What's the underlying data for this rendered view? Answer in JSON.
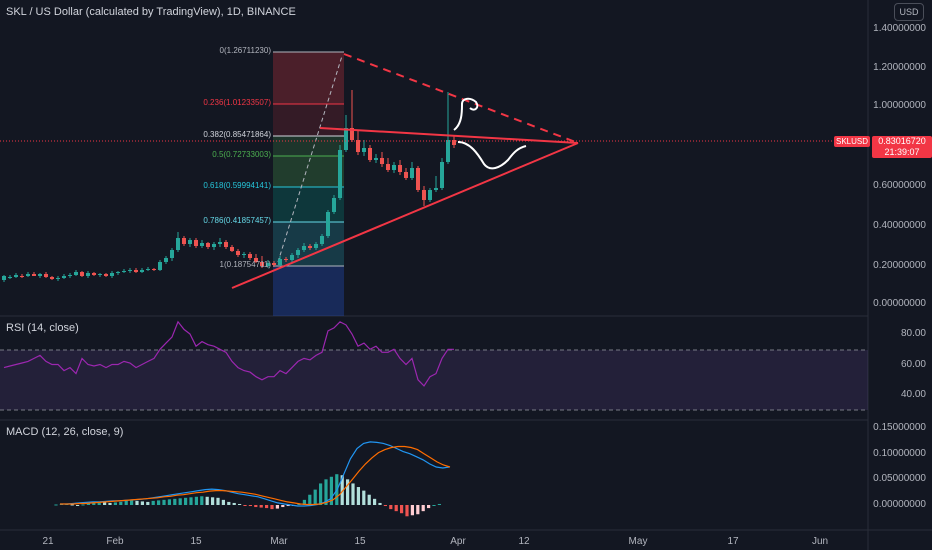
{
  "header": {
    "title": "SKL / US Dollar (calculated by TradingView), 1D, BINANCE"
  },
  "currency_button": "USD",
  "price_axis": [
    "1.40000000",
    "1.20000000",
    "1.00000000",
    "0.80000000",
    "0.60000000",
    "0.40000000",
    "0.20000000",
    "0.00000000"
  ],
  "price_tag": {
    "value": "0.83016720",
    "countdown": "21:39:07",
    "symbol": "SKLUSD"
  },
  "fib_levels": [
    {
      "label": "0(1.26711230)",
      "color": "#b2b5be"
    },
    {
      "label": "0.236(1.01233507)",
      "color": "#f23645"
    },
    {
      "label": "0.382(0.85471864)",
      "color": "#d1d4dc"
    },
    {
      "label": "0.5(0.72733003)",
      "color": "#4caf50"
    },
    {
      "label": "0.618(0.59994141)",
      "color": "#26c6da"
    },
    {
      "label": "0.786(0.41857457)",
      "color": "#66d9e8"
    },
    {
      "label": "1(0.18754711)",
      "color": "#b2b5be"
    }
  ],
  "rsi": {
    "title": "RSI (14, close)",
    "axis": [
      "80.00",
      "60.00",
      "40.00"
    ]
  },
  "macd": {
    "title": "MACD (12, 26, close, 9)",
    "axis": [
      "0.15000000",
      "0.10000000",
      "0.05000000",
      "0.00000000"
    ]
  },
  "time_axis": [
    "21",
    "Feb",
    "15",
    "Mar",
    "15",
    "Apr",
    "12",
    "May",
    "17",
    "Jun"
  ],
  "colors": {
    "up": "#26a69a",
    "down": "#ef5350",
    "drawing": "#f23645",
    "rsi": "#9c27b0",
    "macd": "#2196f3",
    "signal": "#ff6d00"
  }
}
